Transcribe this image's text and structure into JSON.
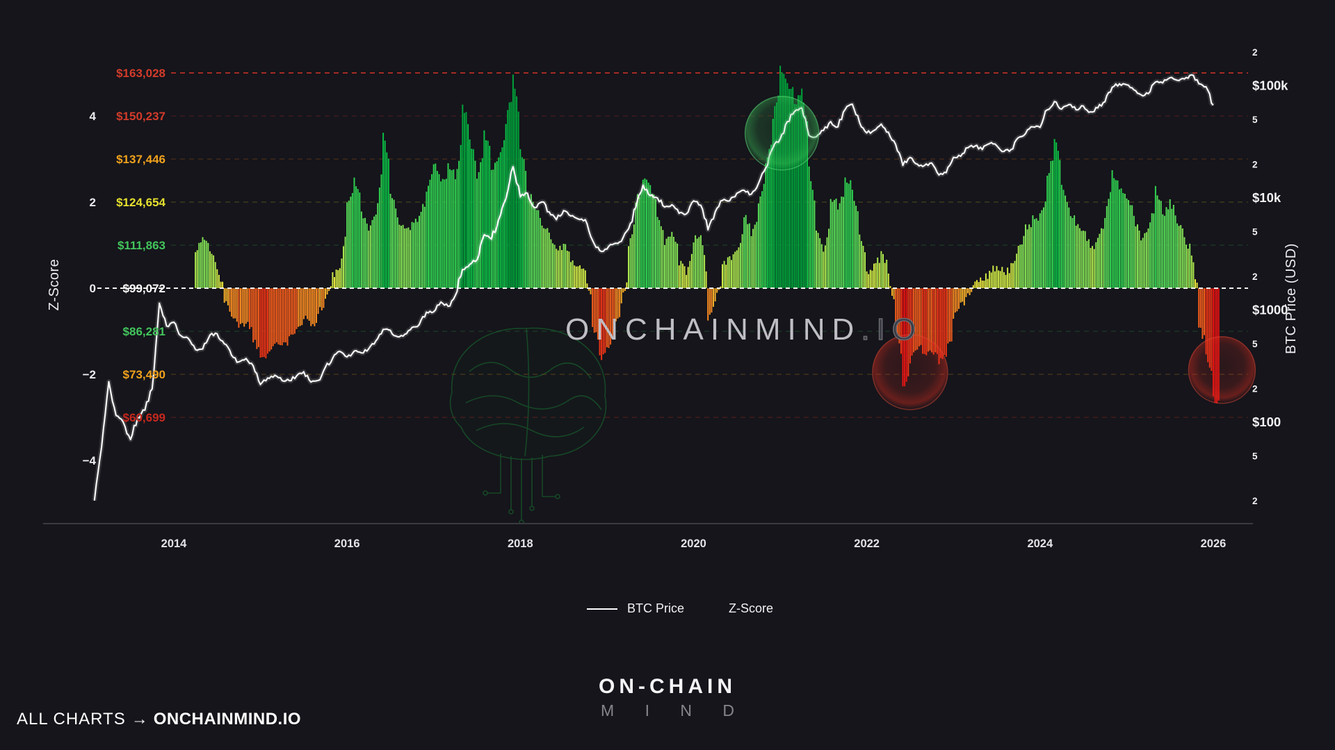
{
  "page": {
    "background": "#15151b"
  },
  "watermark": {
    "main": "ONCHAINMIND",
    "suffix": ".IO"
  },
  "legend": {
    "items": [
      {
        "label": "BTC Price",
        "swatch": "line",
        "color": "#ffffff"
      },
      {
        "label": "Z-Score",
        "swatch": "none",
        "color": "#f2f2f4"
      }
    ]
  },
  "footer": {
    "brand_top": "ON-CHAIN",
    "brand_bottom": "M I N D",
    "credit_prefix": "ALL CHARTS",
    "credit_arrow": "→",
    "credit_brand": "ONCHAINMIND.IO"
  },
  "chart_data": {
    "type": "combo",
    "title": "",
    "axes": {
      "left_title": "Z-Score",
      "right_title": "BTC Price (USD)",
      "x_ticks": [
        "2014",
        "2016",
        "2018",
        "2020",
        "2022",
        "2024",
        "2026"
      ],
      "left_ticks": [
        {
          "z": 4,
          "label": "4"
        },
        {
          "z": 2,
          "label": "2"
        },
        {
          "z": 0,
          "label": "0"
        },
        {
          "z": -2,
          "label": "−2"
        },
        {
          "z": -4,
          "label": "−4"
        }
      ],
      "right_ticks": [
        {
          "label": "2",
          "price": 200000,
          "minor": true
        },
        {
          "label": "$100k",
          "price": 100000,
          "minor": false
        },
        {
          "label": "5",
          "price": 50000,
          "minor": true
        },
        {
          "label": "2",
          "price": 20000,
          "minor": true
        },
        {
          "label": "$10k",
          "price": 10000,
          "minor": false
        },
        {
          "label": "5",
          "price": 5000,
          "minor": true
        },
        {
          "label": "2",
          "price": 2000,
          "minor": true
        },
        {
          "label": "$1000",
          "price": 1000,
          "minor": false
        },
        {
          "label": "5",
          "price": 500,
          "minor": true
        },
        {
          "label": "2",
          "price": 200,
          "minor": true
        },
        {
          "label": "$100",
          "price": 100,
          "minor": false
        },
        {
          "label": "5",
          "price": 50,
          "minor": true
        },
        {
          "label": "2",
          "price": 20,
          "minor": true
        }
      ],
      "z_range": [
        -5.5,
        5.7
      ],
      "price_scale": "log",
      "grid": "dashed-sigma-bands"
    },
    "sigma_levels": [
      {
        "z": 5,
        "label": "$163,028",
        "label_color": "#d23b2a",
        "grid_color": "#c23026",
        "grid_opacity": 0.95
      },
      {
        "z": 4,
        "label": "$150,237",
        "label_color": "#d23b2a",
        "grid_color": "#6e2220",
        "grid_opacity": 0.55
      },
      {
        "z": 3,
        "label": "$137,446",
        "label_color": "#f0a11c",
        "grid_color": "#74411a",
        "grid_opacity": 0.55
      },
      {
        "z": 2,
        "label": "$124,654",
        "label_color": "#e6e02e",
        "grid_color": "#6f6420",
        "grid_opacity": 0.55
      },
      {
        "z": 1,
        "label": "$111,863",
        "label_color": "#43c45c",
        "grid_color": "#275c31",
        "grid_opacity": 0.55
      },
      {
        "z": 0,
        "label": "$99,072",
        "label_color": "#ffffff",
        "grid_color": "#f2f2f2",
        "grid_opacity": 1
      },
      {
        "z": -1,
        "label": "$86,281",
        "label_color": "#43c45c",
        "grid_color": "#275c31",
        "grid_opacity": 0.55
      },
      {
        "z": -2,
        "label": "$73,490",
        "label_color": "#f0a11c",
        "grid_color": "#74501a",
        "grid_opacity": 0.6
      },
      {
        "z": -3,
        "label": "$60,699",
        "label_color": "#c8281e",
        "grid_color": "#6e2220",
        "grid_opacity": 0.65
      }
    ],
    "series": [
      {
        "name": "Z-Score",
        "type": "bar",
        "start_year": 2014.25,
        "step_months": 1,
        "values": [
          0.9,
          1.2,
          0.85,
          0.45,
          -0.35,
          -0.6,
          -0.9,
          -0.75,
          -1.2,
          -1.6,
          -1.45,
          -1.25,
          -1.4,
          -1.05,
          -0.9,
          -0.65,
          -0.9,
          -0.55,
          -0.25,
          0.3,
          0.5,
          1.9,
          2.6,
          1.7,
          1.4,
          1.8,
          3.6,
          2.2,
          1.6,
          1.35,
          1.5,
          1.7,
          2.3,
          2.9,
          2.4,
          2.9,
          2.5,
          4.3,
          3.4,
          2.6,
          3.6,
          2.8,
          3.0,
          3.9,
          5.0,
          3.2,
          2.2,
          1.9,
          1.5,
          1.2,
          0.85,
          1.05,
          0.6,
          0.45,
          0.35,
          -0.9,
          -1.6,
          -1.45,
          -0.9,
          -0.35,
          0.9,
          2.0,
          2.6,
          2.3,
          1.7,
          1.1,
          1.35,
          0.6,
          0.4,
          1.1,
          1.3,
          -0.7,
          -0.25,
          0.55,
          0.7,
          0.9,
          1.7,
          1.3,
          1.9,
          2.9,
          4.0,
          5.1,
          4.8,
          4.3,
          4.6,
          2.8,
          1.3,
          0.8,
          2.1,
          1.9,
          2.6,
          2.2,
          1.3,
          0.35,
          0.55,
          0.85,
          0.25,
          -0.9,
          -2.35,
          -1.65,
          -1.35,
          -1.55,
          -1.45,
          -1.75,
          -1.5,
          -0.7,
          -0.4,
          -0.15,
          0.25,
          0.2,
          0.45,
          0.5,
          0.35,
          0.55,
          0.9,
          1.4,
          1.6,
          1.7,
          2.6,
          3.5,
          2.3,
          1.8,
          1.5,
          1.3,
          0.9,
          1.2,
          1.7,
          2.7,
          2.3,
          2.1,
          1.6,
          1.1,
          1.4,
          2.3,
          1.7,
          2.0,
          1.5,
          1.1,
          0.8,
          -0.9,
          -1.5,
          -2.6
        ]
      },
      {
        "name": "BTC Price",
        "type": "line",
        "axis": "log",
        "color": "#f8f8f8",
        "start_year": 2013.083,
        "step_months": 1,
        "values": [
          20,
          60,
          230,
          115,
          100,
          70,
          110,
          128,
          198,
          1150,
          720,
          780,
          590,
          560,
          445,
          450,
          598,
          615,
          500,
          395,
          345,
          370,
          318,
          217,
          248,
          262,
          235,
          235,
          258,
          282,
          228,
          236,
          310,
          372,
          428,
          382,
          432,
          415,
          452,
          532,
          672,
          660,
          578,
          608,
          700,
          742,
          958,
          965,
          1180,
          1080,
          1350,
          2300,
          2550,
          2800,
          4700,
          4300,
          6400,
          9800,
          19000,
          10200,
          11000,
          8200,
          9200,
          7500,
          6400,
          7700,
          6900,
          6500,
          6400,
          4200,
          3400,
          3500,
          3900,
          4100,
          5300,
          8200,
          13000,
          10500,
          10000,
          8300,
          8700,
          7300,
          7200,
          9400,
          8600,
          5200,
          7500,
          9500,
          9400,
          11000,
          11700,
          10800,
          13500,
          18500,
          28000,
          33500,
          48000,
          59000,
          63500,
          36000,
          35000,
          40000,
          48000,
          43000,
          61500,
          68500,
          47000,
          38000,
          40000,
          45500,
          38500,
          30000,
          19500,
          23000,
          20000,
          19500,
          20500,
          16000,
          16800,
          23000,
          23500,
          28000,
          29000,
          27000,
          30500,
          29200,
          26000,
          27000,
          34500,
          37500,
          43000,
          42500,
          61000,
          72500,
          62000,
          68000,
          61000,
          66000,
          58500,
          63500,
          72000,
          97000,
          104000,
          102000,
          92000,
          83000,
          85000,
          108000,
          106000,
          118000,
          112000,
          115000,
          125000,
          104000,
          98000,
          67000
        ]
      }
    ],
    "bar_palette": {
      "positive": [
        [
          4,
          "#00a23a"
        ],
        [
          3,
          "#0cbd45"
        ],
        [
          2.2,
          "#2ecf4f"
        ],
        [
          1.5,
          "#55da57"
        ],
        [
          1,
          "#82e055"
        ],
        [
          0.6,
          "#abe64e"
        ],
        [
          0.3,
          "#cfe945"
        ],
        [
          0,
          "#e9e43c"
        ]
      ],
      "negative": [
        [
          -0.45,
          "#f5ae29"
        ],
        [
          -0.9,
          "#f68a22"
        ],
        [
          -1.5,
          "#f45d1c"
        ],
        [
          -2.1,
          "#ee3416"
        ],
        [
          -9,
          "#e71111"
        ]
      ]
    },
    "annotations": [
      {
        "shape": "circle",
        "color": "green",
        "year": 2021.02,
        "z": 3.6,
        "r": 53
      },
      {
        "shape": "circle",
        "color": "red",
        "year": 2022.5,
        "z": -1.95,
        "r": 54
      },
      {
        "shape": "circle",
        "color": "red",
        "year": 2026.1,
        "z": -1.9,
        "r": 48
      }
    ]
  }
}
